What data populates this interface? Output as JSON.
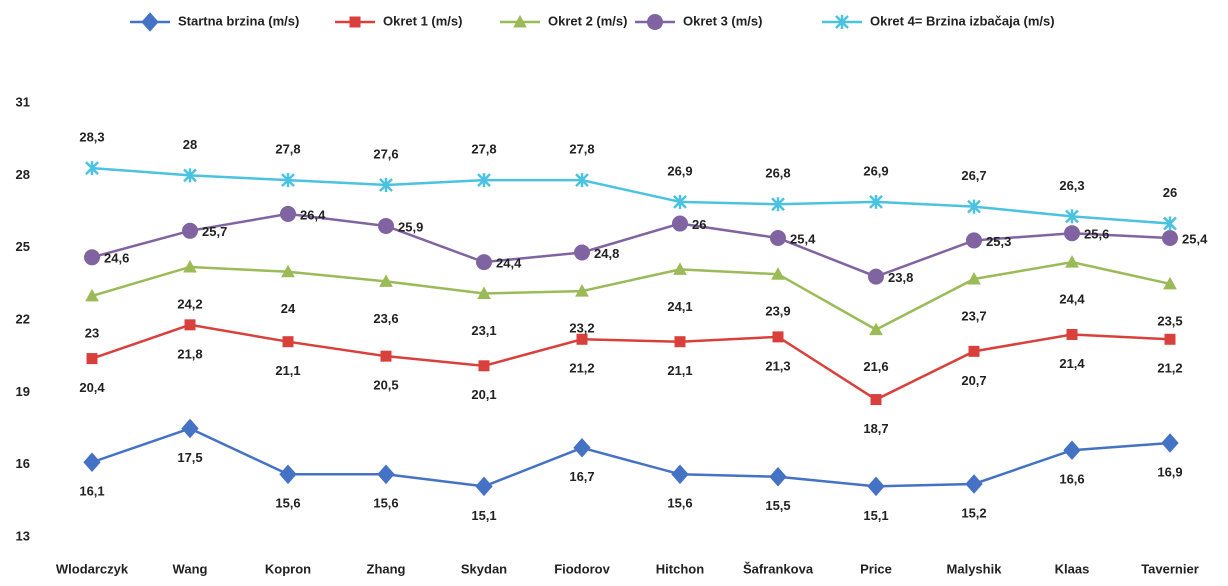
{
  "chart_data": {
    "type": "line",
    "categories": [
      "Wlodarczyk",
      "Wang",
      "Kopron",
      "Zhang",
      "Skydan",
      "Fiodorov",
      "Hitchon",
      "Šafrankova",
      "Price",
      "Malyshik",
      "Klaas",
      "Tavernier"
    ],
    "ylim": [
      13,
      31
    ],
    "yticks": [
      13,
      16,
      19,
      22,
      25,
      28,
      31
    ],
    "grid": false,
    "legend": "top",
    "series": [
      {
        "name": "Startna brzina (m/s)",
        "color": "#4472c4",
        "marker": "diamond",
        "values": [
          16.1,
          17.5,
          15.6,
          15.6,
          15.1,
          16.7,
          15.6,
          15.5,
          15.1,
          15.2,
          16.6,
          16.9
        ],
        "value_labels": [
          "16,1",
          "17,5",
          "15,6",
          "15,6",
          "15,1",
          "16,7",
          "15,6",
          "15,5",
          "15,1",
          "15,2",
          "16,6",
          "16,9"
        ]
      },
      {
        "name": "Okret 1 (m/s)",
        "color": "#d9403b",
        "marker": "square",
        "values": [
          20.4,
          21.8,
          21.1,
          20.5,
          20.1,
          21.2,
          21.1,
          21.3,
          18.7,
          20.7,
          21.4,
          21.2
        ],
        "value_labels": [
          "20,4",
          "21,8",
          "21,1",
          "20,5",
          "20,1",
          "21,2",
          "21,1",
          "21,3",
          "18,7",
          "20,7",
          "21,4",
          "21,2"
        ]
      },
      {
        "name": "Okret 2 (m/s)",
        "color": "#9bbb59",
        "marker": "triangle",
        "values": [
          23,
          24.2,
          24,
          23.6,
          23.1,
          23.2,
          24.1,
          23.9,
          21.6,
          23.7,
          24.4,
          23.5
        ],
        "value_labels": [
          "23",
          "24,2",
          "24",
          "23,6",
          "23,1",
          "23,2",
          "24,1",
          "23,9",
          "21,6",
          "23,7",
          "24,4",
          "23,5"
        ]
      },
      {
        "name": "Okret 3 (m/s)",
        "color": "#8064a2",
        "marker": "circle",
        "values": [
          24.6,
          25.7,
          26.4,
          25.9,
          24.4,
          24.8,
          26,
          25.4,
          23.8,
          25.3,
          25.6,
          25.4
        ],
        "value_labels": [
          "24,6",
          "25,7",
          "26,4",
          "25,9",
          "24,4",
          "24,8",
          "26",
          "25,4",
          "23,8",
          "25,3",
          "25,6",
          "25,4"
        ]
      },
      {
        "name": "Okret 4= Brzina izbačaja (m/s)",
        "color": "#4bc3e0",
        "marker": "x",
        "values": [
          28.3,
          28,
          27.8,
          27.6,
          27.8,
          27.8,
          26.9,
          26.8,
          26.9,
          26.7,
          26.3,
          26
        ],
        "value_labels": [
          "28,3",
          "28",
          "27,8",
          "27,6",
          "27,8",
          "27,8",
          "26,9",
          "26,8",
          "26,9",
          "26,7",
          "26,3",
          "26"
        ]
      }
    ]
  }
}
